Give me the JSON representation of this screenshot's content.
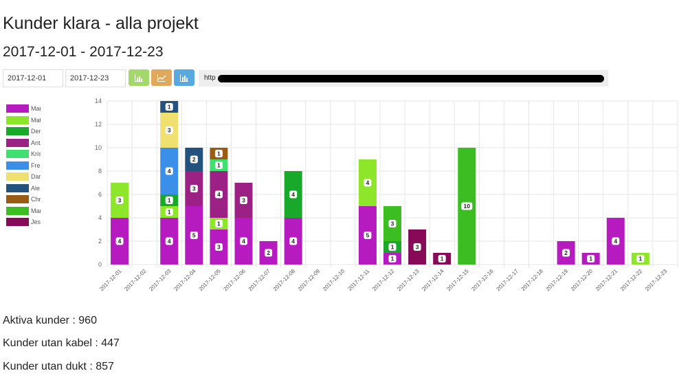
{
  "page": {
    "title": "Kunder klara - alla projekt",
    "subtitle": "2017-12-01 - 2017-12-23"
  },
  "toolbar": {
    "from_date": "2017-12-01",
    "to_date": "2017-12-23",
    "url_text": "http",
    "buttons": [
      {
        "icon": "bar-chart-icon",
        "color": "#a3d96a"
      },
      {
        "icon": "line-chart-icon",
        "color": "#e0a85a"
      },
      {
        "icon": "bar-chart-icon",
        "color": "#57a9e0"
      }
    ]
  },
  "legend": [
    {
      "label": "Mar",
      "color": "#b51bbf"
    },
    {
      "label": "Mat",
      "color": "#8ee62a"
    },
    {
      "label": "Der",
      "color": "#18a82a"
    },
    {
      "label": "Ant",
      "color": "#9c2184"
    },
    {
      "label": "Kris",
      "color": "#3fe070"
    },
    {
      "label": "Fred",
      "color": "#3c8fe8"
    },
    {
      "label": "Dar",
      "color": "#efe070"
    },
    {
      "label": "Ale",
      "color": "#24527e"
    },
    {
      "label": "Chr",
      "color": "#9a5c12"
    },
    {
      "label": "Mar",
      "color": "#3cbd22"
    },
    {
      "label": "Jes",
      "color": "#860a58"
    }
  ],
  "chart_data": {
    "type": "bar",
    "stacked": true,
    "categories": [
      "2017-12-01",
      "2017-12-02",
      "2017-12-03",
      "2017-12-04",
      "2017-12-05",
      "2017-12-06",
      "2017-12-07",
      "2017-12-08",
      "2017-12-09",
      "2017-12-10",
      "2017-12-11",
      "2017-12-12",
      "2017-12-13",
      "2017-12-14",
      "2017-12-15",
      "2017-12-16",
      "2017-12-17",
      "2017-12-18",
      "2017-12-19",
      "2017-12-20",
      "2017-12-21",
      "2017-12-22",
      "2017-12-23"
    ],
    "ylim": [
      0,
      14
    ],
    "yticks": [
      0,
      2,
      4,
      6,
      8,
      10,
      12,
      14
    ],
    "grid": true,
    "legend_position": "left",
    "series": [
      {
        "color": "#b51bbf",
        "values": [
          4,
          0,
          4,
          5,
          3,
          4,
          2,
          4,
          0,
          0,
          5,
          1,
          0,
          0,
          0,
          0,
          0,
          0,
          2,
          1,
          4,
          0,
          0
        ]
      },
      {
        "color": "#8ee62a",
        "values": [
          3,
          0,
          1,
          0,
          1,
          0,
          0,
          0,
          0,
          0,
          4,
          0,
          0,
          0,
          0,
          0,
          0,
          0,
          0,
          0,
          0,
          1,
          0
        ]
      },
      {
        "color": "#18a82a",
        "values": [
          0,
          0,
          1,
          0,
          0,
          0,
          0,
          4,
          0,
          0,
          0,
          1,
          0,
          0,
          0,
          0,
          0,
          0,
          0,
          0,
          0,
          0,
          0
        ]
      },
      {
        "color": "#9c2184",
        "values": [
          0,
          0,
          0,
          3,
          4,
          3,
          0,
          0,
          0,
          0,
          0,
          0,
          0,
          0,
          0,
          0,
          0,
          0,
          0,
          0,
          0,
          0,
          0
        ]
      },
      {
        "color": "#3fe070",
        "values": [
          0,
          0,
          0,
          0,
          1,
          0,
          0,
          0,
          0,
          0,
          0,
          0,
          0,
          0,
          0,
          0,
          0,
          0,
          0,
          0,
          0,
          0,
          0
        ]
      },
      {
        "color": "#3c8fe8",
        "values": [
          0,
          0,
          4,
          0,
          0,
          0,
          0,
          0,
          0,
          0,
          0,
          0,
          0,
          0,
          0,
          0,
          0,
          0,
          0,
          0,
          0,
          0,
          0
        ]
      },
      {
        "color": "#efe070",
        "values": [
          0,
          0,
          3,
          0,
          0,
          0,
          0,
          0,
          0,
          0,
          0,
          0,
          0,
          0,
          0,
          0,
          0,
          0,
          0,
          0,
          0,
          0,
          0
        ]
      },
      {
        "color": "#24527e",
        "values": [
          0,
          0,
          1,
          2,
          0,
          0,
          0,
          0,
          0,
          0,
          0,
          0,
          0,
          0,
          0,
          0,
          0,
          0,
          0,
          0,
          0,
          0,
          0
        ]
      },
      {
        "color": "#9a5c12",
        "values": [
          0,
          0,
          0,
          0,
          1,
          0,
          0,
          0,
          0,
          0,
          0,
          0,
          0,
          0,
          0,
          0,
          0,
          0,
          0,
          0,
          0,
          0,
          0
        ]
      },
      {
        "color": "#3cbd22",
        "values": [
          0,
          0,
          0,
          0,
          0,
          0,
          0,
          0,
          0,
          0,
          0,
          3,
          0,
          0,
          10,
          0,
          0,
          0,
          0,
          0,
          0,
          0,
          0
        ]
      },
      {
        "color": "#860a58",
        "values": [
          0,
          0,
          0,
          0,
          0,
          0,
          0,
          0,
          0,
          0,
          0,
          0,
          3,
          1,
          0,
          0,
          0,
          0,
          0,
          0,
          0,
          0,
          0
        ]
      }
    ]
  },
  "stats": {
    "active": "Aktiva kunder : 960",
    "no_cable": "Kunder utan kabel : 447",
    "no_duct": "Kunder utan dukt : 857"
  }
}
